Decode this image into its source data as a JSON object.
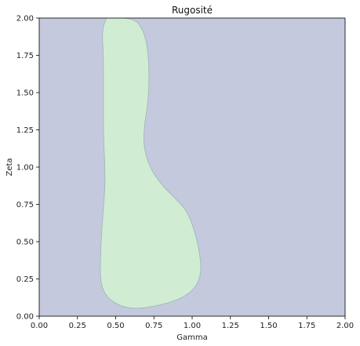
{
  "chart_data": {
    "type": "contour",
    "title": "Rugosité",
    "xlabel": "Gamma",
    "ylabel": "Zeta",
    "xlim": [
      0,
      2
    ],
    "ylim": [
      0,
      2
    ],
    "xticks": [
      "0.00",
      "0.25",
      "0.50",
      "0.75",
      "1.00",
      "1.25",
      "1.50",
      "1.75",
      "2.00"
    ],
    "yticks": [
      "0.00",
      "0.25",
      "0.50",
      "0.75",
      "1.00",
      "1.25",
      "1.50",
      "1.75",
      "2.00"
    ],
    "grid": false,
    "colors": {
      "background_region": "#c4c9dd",
      "inner_region": "#d0edd3",
      "boundary": "#9fb3b5"
    },
    "regions": [
      {
        "name": "",
        "boundary": [
          [
            0.44,
            2.0
          ],
          [
            0.62,
            2.0
          ],
          [
            0.68,
            1.92
          ],
          [
            0.71,
            1.8
          ],
          [
            0.72,
            1.6
          ],
          [
            0.71,
            1.42
          ],
          [
            0.69,
            1.3
          ],
          [
            0.68,
            1.15
          ],
          [
            0.72,
            1.0
          ],
          [
            0.8,
            0.88
          ],
          [
            0.9,
            0.78
          ],
          [
            0.97,
            0.7
          ],
          [
            1.02,
            0.56
          ],
          [
            1.05,
            0.42
          ],
          [
            1.06,
            0.3
          ],
          [
            1.03,
            0.2
          ],
          [
            0.95,
            0.13
          ],
          [
            0.85,
            0.09
          ],
          [
            0.72,
            0.06
          ],
          [
            0.62,
            0.05
          ],
          [
            0.52,
            0.07
          ],
          [
            0.44,
            0.13
          ],
          [
            0.4,
            0.22
          ],
          [
            0.4,
            0.4
          ],
          [
            0.41,
            0.6
          ],
          [
            0.43,
            0.85
          ],
          [
            0.43,
            1.0
          ],
          [
            0.42,
            1.2
          ],
          [
            0.42,
            1.5
          ],
          [
            0.42,
            1.75
          ],
          [
            0.41,
            1.92
          ],
          [
            0.44,
            2.0
          ]
        ]
      }
    ]
  }
}
